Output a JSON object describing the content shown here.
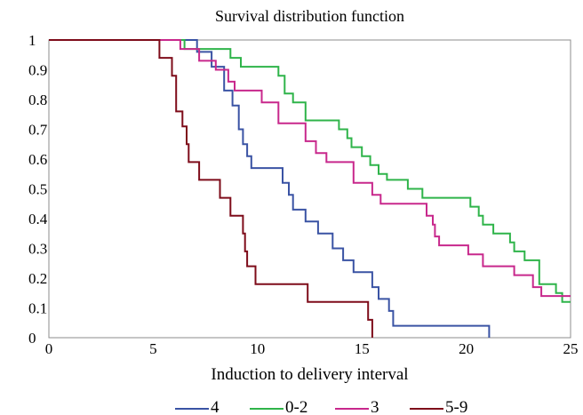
{
  "chart_data": {
    "type": "line",
    "step": true,
    "title": "Survival distribution function",
    "xlabel": "Induction to delivery interval",
    "ylabel": "",
    "xlim": [
      0,
      25
    ],
    "ylim": [
      0,
      1
    ],
    "x_ticks": [
      "0",
      "5",
      "10",
      "15",
      "20",
      "25"
    ],
    "y_ticks": [
      "0",
      "0.1",
      "0.2",
      "0.3",
      "0.4",
      "0.5",
      "0.6",
      "0.7",
      "0.8",
      "0.9",
      "1"
    ],
    "grid": false,
    "legend_position": "bottom",
    "series": [
      {
        "name": "4",
        "color": "#3a53a4",
        "points": [
          [
            0,
            1
          ],
          [
            7.1,
            1
          ],
          [
            7.1,
            0.96
          ],
          [
            7.8,
            0.96
          ],
          [
            7.8,
            0.91
          ],
          [
            8.4,
            0.91
          ],
          [
            8.4,
            0.83
          ],
          [
            8.8,
            0.83
          ],
          [
            8.8,
            0.78
          ],
          [
            9.1,
            0.78
          ],
          [
            9.1,
            0.7
          ],
          [
            9.3,
            0.7
          ],
          [
            9.3,
            0.65
          ],
          [
            9.5,
            0.65
          ],
          [
            9.5,
            0.61
          ],
          [
            9.7,
            0.61
          ],
          [
            9.7,
            0.57
          ],
          [
            11.2,
            0.57
          ],
          [
            11.2,
            0.52
          ],
          [
            11.5,
            0.52
          ],
          [
            11.5,
            0.48
          ],
          [
            11.7,
            0.48
          ],
          [
            11.7,
            0.43
          ],
          [
            12.3,
            0.43
          ],
          [
            12.3,
            0.39
          ],
          [
            12.9,
            0.39
          ],
          [
            12.9,
            0.35
          ],
          [
            13.6,
            0.35
          ],
          [
            13.6,
            0.3
          ],
          [
            14.1,
            0.3
          ],
          [
            14.1,
            0.26
          ],
          [
            14.6,
            0.26
          ],
          [
            14.6,
            0.22
          ],
          [
            15.5,
            0.22
          ],
          [
            15.5,
            0.17
          ],
          [
            15.8,
            0.17
          ],
          [
            15.8,
            0.13
          ],
          [
            16.3,
            0.13
          ],
          [
            16.3,
            0.09
          ],
          [
            16.5,
            0.09
          ],
          [
            16.5,
            0.04
          ],
          [
            21.1,
            0.04
          ],
          [
            21.1,
            0
          ]
        ]
      },
      {
        "name": "0-2",
        "color": "#2fb44a",
        "points": [
          [
            0,
            1
          ],
          [
            6.5,
            1
          ],
          [
            6.5,
            0.97
          ],
          [
            8.7,
            0.97
          ],
          [
            8.7,
            0.94
          ],
          [
            9.2,
            0.94
          ],
          [
            9.2,
            0.91
          ],
          [
            11,
            0.91
          ],
          [
            11,
            0.88
          ],
          [
            11.3,
            0.88
          ],
          [
            11.3,
            0.82
          ],
          [
            11.7,
            0.82
          ],
          [
            11.7,
            0.79
          ],
          [
            12.3,
            0.79
          ],
          [
            12.3,
            0.73
          ],
          [
            13.9,
            0.73
          ],
          [
            13.9,
            0.7
          ],
          [
            14.3,
            0.7
          ],
          [
            14.3,
            0.67
          ],
          [
            14.5,
            0.67
          ],
          [
            14.5,
            0.64
          ],
          [
            15,
            0.64
          ],
          [
            15,
            0.61
          ],
          [
            15.4,
            0.61
          ],
          [
            15.4,
            0.58
          ],
          [
            15.8,
            0.58
          ],
          [
            15.8,
            0.55
          ],
          [
            16.2,
            0.55
          ],
          [
            16.2,
            0.53
          ],
          [
            17.2,
            0.53
          ],
          [
            17.2,
            0.5
          ],
          [
            17.9,
            0.5
          ],
          [
            17.9,
            0.47
          ],
          [
            20.2,
            0.47
          ],
          [
            20.2,
            0.44
          ],
          [
            20.6,
            0.44
          ],
          [
            20.6,
            0.41
          ],
          [
            20.8,
            0.41
          ],
          [
            20.8,
            0.38
          ],
          [
            21.3,
            0.38
          ],
          [
            21.3,
            0.35
          ],
          [
            22.1,
            0.35
          ],
          [
            22.1,
            0.32
          ],
          [
            22.3,
            0.32
          ],
          [
            22.3,
            0.29
          ],
          [
            22.8,
            0.29
          ],
          [
            22.8,
            0.26
          ],
          [
            23.5,
            0.26
          ],
          [
            23.5,
            0.18
          ],
          [
            24.3,
            0.18
          ],
          [
            24.3,
            0.15
          ],
          [
            24.6,
            0.15
          ],
          [
            24.6,
            0.12
          ],
          [
            25,
            0.12
          ]
        ]
      },
      {
        "name": "3",
        "color": "#c8288c",
        "points": [
          [
            0,
            1
          ],
          [
            6.3,
            1
          ],
          [
            6.3,
            0.97
          ],
          [
            7.2,
            0.97
          ],
          [
            7.2,
            0.93
          ],
          [
            8,
            0.93
          ],
          [
            8,
            0.9
          ],
          [
            8.6,
            0.9
          ],
          [
            8.6,
            0.86
          ],
          [
            8.9,
            0.86
          ],
          [
            8.9,
            0.83
          ],
          [
            10.2,
            0.83
          ],
          [
            10.2,
            0.79
          ],
          [
            11,
            0.79
          ],
          [
            11,
            0.72
          ],
          [
            12.3,
            0.72
          ],
          [
            12.3,
            0.66
          ],
          [
            12.8,
            0.66
          ],
          [
            12.8,
            0.62
          ],
          [
            13.3,
            0.62
          ],
          [
            13.3,
            0.59
          ],
          [
            14.6,
            0.59
          ],
          [
            14.6,
            0.52
          ],
          [
            15.5,
            0.52
          ],
          [
            15.5,
            0.48
          ],
          [
            15.9,
            0.48
          ],
          [
            15.9,
            0.45
          ],
          [
            18.1,
            0.45
          ],
          [
            18.1,
            0.41
          ],
          [
            18.4,
            0.41
          ],
          [
            18.4,
            0.38
          ],
          [
            18.5,
            0.38
          ],
          [
            18.5,
            0.34
          ],
          [
            18.7,
            0.34
          ],
          [
            18.7,
            0.31
          ],
          [
            20.1,
            0.31
          ],
          [
            20.1,
            0.28
          ],
          [
            20.8,
            0.28
          ],
          [
            20.8,
            0.24
          ],
          [
            22.3,
            0.24
          ],
          [
            22.3,
            0.21
          ],
          [
            23.2,
            0.21
          ],
          [
            23.2,
            0.17
          ],
          [
            23.6,
            0.17
          ],
          [
            23.6,
            0.14
          ],
          [
            25,
            0.14
          ]
        ]
      },
      {
        "name": "5-9",
        "color": "#7e0c1a",
        "points": [
          [
            0,
            1
          ],
          [
            5.3,
            1
          ],
          [
            5.3,
            0.94
          ],
          [
            5.9,
            0.94
          ],
          [
            5.9,
            0.88
          ],
          [
            6.1,
            0.88
          ],
          [
            6.1,
            0.76
          ],
          [
            6.4,
            0.76
          ],
          [
            6.4,
            0.71
          ],
          [
            6.6,
            0.71
          ],
          [
            6.6,
            0.65
          ],
          [
            6.7,
            0.65
          ],
          [
            6.7,
            0.59
          ],
          [
            7.2,
            0.59
          ],
          [
            7.2,
            0.53
          ],
          [
            8.2,
            0.53
          ],
          [
            8.2,
            0.47
          ],
          [
            8.7,
            0.47
          ],
          [
            8.7,
            0.41
          ],
          [
            9.3,
            0.41
          ],
          [
            9.3,
            0.35
          ],
          [
            9.4,
            0.35
          ],
          [
            9.4,
            0.29
          ],
          [
            9.5,
            0.29
          ],
          [
            9.5,
            0.24
          ],
          [
            9.9,
            0.24
          ],
          [
            9.9,
            0.18
          ],
          [
            12.4,
            0.18
          ],
          [
            12.4,
            0.12
          ],
          [
            15.3,
            0.12
          ],
          [
            15.3,
            0.06
          ],
          [
            15.5,
            0.06
          ],
          [
            15.5,
            0
          ]
        ]
      }
    ]
  }
}
